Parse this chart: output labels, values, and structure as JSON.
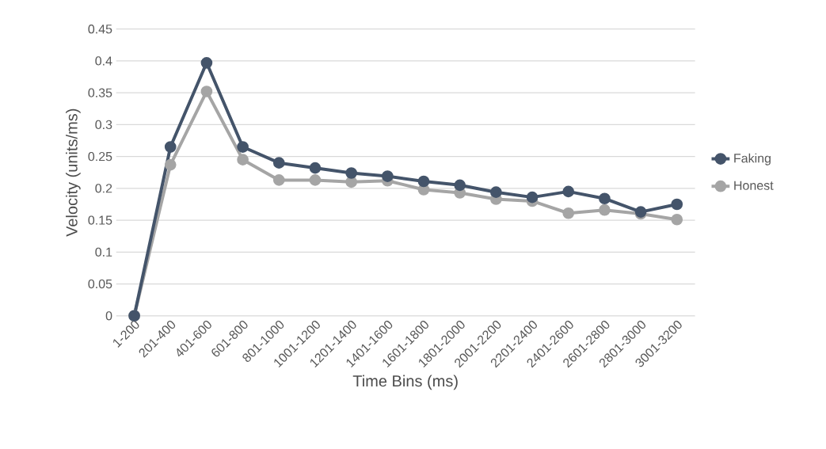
{
  "chart_data": {
    "type": "line",
    "xlabel": "Time Bins (ms)",
    "ylabel": "Velocity (units/ms)",
    "categories": [
      "1-200",
      "201-400",
      "401-600",
      "601-800",
      "801-1000",
      "1001-1200",
      "1201-1400",
      "1401-1600",
      "1601-1800",
      "1801-2000",
      "2001-2200",
      "2201-2400",
      "2401-2600",
      "2601-2800",
      "2801-3000",
      "3001-3200"
    ],
    "series": [
      {
        "name": "Faking",
        "color": "#44546a",
        "values": [
          0,
          0.265,
          0.397,
          0.265,
          0.24,
          0.232,
          0.224,
          0.219,
          0.211,
          0.205,
          0.194,
          0.186,
          0.195,
          0.184,
          0.163,
          0.175
        ]
      },
      {
        "name": "Honest",
        "color": "#a5a5a5",
        "values": [
          0,
          0.237,
          0.352,
          0.245,
          0.213,
          0.213,
          0.21,
          0.212,
          0.198,
          0.193,
          0.183,
          0.18,
          0.161,
          0.166,
          0.16,
          0.151
        ]
      }
    ],
    "ylim": [
      0,
      0.45
    ],
    "yticks": [
      0,
      0.05,
      0.1,
      0.15,
      0.2,
      0.25,
      0.3,
      0.35,
      0.4,
      0.45
    ],
    "grid": "y",
    "legend": "right",
    "marker": "circle",
    "line_style": "solid"
  }
}
